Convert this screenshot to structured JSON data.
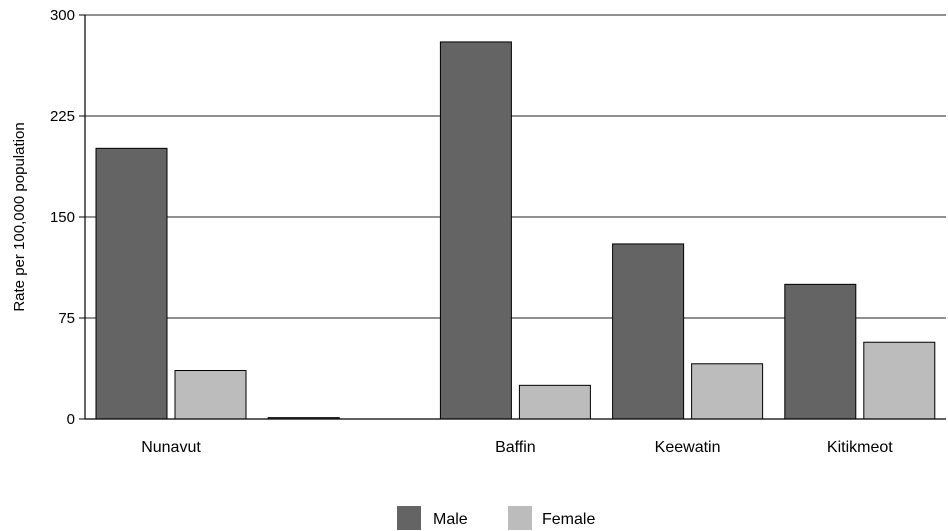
{
  "chart_data": {
    "type": "bar",
    "title": "",
    "xlabel": "",
    "ylabel": "Rate per 100,000 population",
    "ylim": [
      0,
      300
    ],
    "yticks": [
      0,
      75,
      150,
      225,
      300
    ],
    "grid": true,
    "legend_position": "bottom-center",
    "categories": [
      "Nunavut",
      "",
      "Baffin",
      "Keewatin",
      "Kitikmeot"
    ],
    "series": [
      {
        "name": "Male",
        "color": "#646464",
        "values": [
          201,
          1,
          280,
          130,
          100
        ]
      },
      {
        "name": "Female",
        "color": "#bcbcbc",
        "values": [
          36,
          0,
          25,
          41,
          57
        ]
      }
    ]
  }
}
